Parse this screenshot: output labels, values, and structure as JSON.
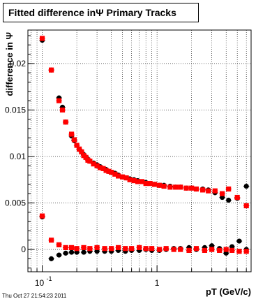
{
  "header": {
    "title": "Fitted difference inΨ   Primary Tracks"
  },
  "footer": {
    "timestamp": "Thu Oct 27 21:54:23 2011"
  },
  "chart_data": {
    "type": "scatter",
    "title": "Fitted difference inΨ   Primary Tracks",
    "xlabel": "pT (GeV/c)",
    "ylabel": "difference in Ψ",
    "xscale": "log",
    "xlim": [
      0.075,
      6.6
    ],
    "ylim": [
      -0.0024,
      0.0236
    ],
    "xticks": [
      {
        "v": 0.1,
        "base": "10",
        "exp": "-1"
      },
      {
        "v": 1,
        "label": "1"
      }
    ],
    "yticks": [
      {
        "v": 0,
        "label": "0"
      },
      {
        "v": 0.005,
        "label": "0.005"
      },
      {
        "v": 0.01,
        "label": "0.01"
      },
      {
        "v": 0.015,
        "label": "0.015"
      },
      {
        "v": 0.02,
        "label": "0.02"
      }
    ],
    "grid": true,
    "colors": {
      "series_a": "#000000",
      "series_b": "#ff0000"
    },
    "series": [
      {
        "color": "#000000",
        "points": [
          [
            0.1,
            0.0225
          ],
          [
            0.12,
            0.0193
          ],
          [
            0.14,
            0.0163
          ],
          [
            0.15,
            0.0153
          ],
          [
            0.16,
            0.0137
          ],
          [
            0.18,
            0.0122
          ],
          [
            0.19,
            0.0117
          ],
          [
            0.2,
            0.0112
          ],
          [
            0.21,
            0.0108
          ],
          [
            0.22,
            0.0105
          ],
          [
            0.23,
            0.0102
          ],
          [
            0.24,
            0.0099
          ],
          [
            0.25,
            0.0097
          ],
          [
            0.26,
            0.0095
          ],
          [
            0.28,
            0.0093
          ],
          [
            0.3,
            0.0091
          ],
          [
            0.32,
            0.0089
          ],
          [
            0.34,
            0.0087
          ],
          [
            0.36,
            0.0086
          ],
          [
            0.38,
            0.0084
          ],
          [
            0.4,
            0.0083
          ],
          [
            0.43,
            0.0082
          ],
          [
            0.46,
            0.008
          ],
          [
            0.5,
            0.0078
          ],
          [
            0.54,
            0.0077
          ],
          [
            0.58,
            0.0076
          ],
          [
            0.63,
            0.0075
          ],
          [
            0.68,
            0.0074
          ],
          [
            0.74,
            0.0073
          ],
          [
            0.8,
            0.0072
          ],
          [
            0.87,
            0.0071
          ],
          [
            0.95,
            0.007
          ],
          [
            1.05,
            0.0069
          ],
          [
            1.15,
            0.0069
          ],
          [
            1.3,
            0.0068
          ],
          [
            1.45,
            0.0067
          ],
          [
            1.6,
            0.0067
          ],
          [
            1.8,
            0.0066
          ],
          [
            2.0,
            0.0066
          ],
          [
            2.2,
            0.0065
          ],
          [
            2.5,
            0.0065
          ],
          [
            2.8,
            0.0064
          ],
          [
            3.2,
            0.0061
          ],
          [
            3.7,
            0.0056
          ],
          [
            4.2,
            0.0053
          ],
          [
            5.0,
            0.0055
          ],
          [
            6.0,
            0.0068
          ],
          [
            0.1,
            0.0035
          ],
          [
            0.12,
            -0.001
          ],
          [
            0.14,
            -0.0006
          ],
          [
            0.16,
            -0.0004
          ],
          [
            0.18,
            -0.0003
          ],
          [
            0.2,
            -0.0003
          ],
          [
            0.23,
            -0.0003
          ],
          [
            0.26,
            -0.0002
          ],
          [
            0.3,
            -0.0002
          ],
          [
            0.35,
            -0.0002
          ],
          [
            0.4,
            -0.0002
          ],
          [
            0.46,
            -0.0001
          ],
          [
            0.53,
            -0.0002
          ],
          [
            0.6,
            -0.0001
          ],
          [
            0.7,
            -0.0001
          ],
          [
            0.8,
            0.0
          ],
          [
            0.9,
            -0.0001
          ],
          [
            1.05,
            -0.0001
          ],
          [
            1.2,
            0.0
          ],
          [
            1.4,
            0.0001
          ],
          [
            1.6,
            0.0001
          ],
          [
            1.9,
            0.0002
          ],
          [
            2.2,
            0.0
          ],
          [
            2.6,
            0.0002
          ],
          [
            3.0,
            0.0004
          ],
          [
            3.5,
            0.0001
          ],
          [
            4.0,
            -0.0004
          ],
          [
            4.5,
            0.0003
          ],
          [
            5.2,
            0.0009
          ],
          [
            6.0,
            0.0
          ]
        ]
      },
      {
        "color": "#ff0000",
        "points": [
          [
            0.1,
            0.0227
          ],
          [
            0.12,
            0.0193
          ],
          [
            0.14,
            0.016
          ],
          [
            0.15,
            0.015
          ],
          [
            0.16,
            0.0137
          ],
          [
            0.18,
            0.0124
          ],
          [
            0.19,
            0.0118
          ],
          [
            0.2,
            0.0112
          ],
          [
            0.21,
            0.0108
          ],
          [
            0.22,
            0.0105
          ],
          [
            0.23,
            0.0101
          ],
          [
            0.24,
            0.0099
          ],
          [
            0.25,
            0.0096
          ],
          [
            0.26,
            0.0095
          ],
          [
            0.28,
            0.0092
          ],
          [
            0.3,
            0.009
          ],
          [
            0.32,
            0.0088
          ],
          [
            0.34,
            0.0087
          ],
          [
            0.36,
            0.0085
          ],
          [
            0.38,
            0.0084
          ],
          [
            0.4,
            0.0083
          ],
          [
            0.43,
            0.0081
          ],
          [
            0.46,
            0.0079
          ],
          [
            0.5,
            0.0078
          ],
          [
            0.54,
            0.0077
          ],
          [
            0.58,
            0.0075
          ],
          [
            0.63,
            0.0074
          ],
          [
            0.68,
            0.0073
          ],
          [
            0.74,
            0.0073
          ],
          [
            0.8,
            0.0071
          ],
          [
            0.87,
            0.0071
          ],
          [
            0.95,
            0.007
          ],
          [
            1.05,
            0.0069
          ],
          [
            1.15,
            0.0068
          ],
          [
            1.3,
            0.0067
          ],
          [
            1.45,
            0.0067
          ],
          [
            1.6,
            0.0067
          ],
          [
            1.8,
            0.0066
          ],
          [
            2.0,
            0.0066
          ],
          [
            2.2,
            0.0065
          ],
          [
            2.5,
            0.0064
          ],
          [
            2.8,
            0.0063
          ],
          [
            3.2,
            0.0063
          ],
          [
            3.7,
            0.006
          ],
          [
            4.2,
            0.0065
          ],
          [
            5.0,
            0.0056
          ],
          [
            6.0,
            0.0047
          ],
          [
            0.1,
            0.0036
          ],
          [
            0.12,
            0.001
          ],
          [
            0.14,
            0.0005
          ],
          [
            0.16,
            0.0002
          ],
          [
            0.18,
            0.0002
          ],
          [
            0.2,
            0.0001
          ],
          [
            0.23,
            0.0002
          ],
          [
            0.26,
            0.0001
          ],
          [
            0.3,
            0.0002
          ],
          [
            0.35,
            0.0001
          ],
          [
            0.4,
            0.0001
          ],
          [
            0.46,
            0.0002
          ],
          [
            0.53,
            0.0001
          ],
          [
            0.6,
            0.0001
          ],
          [
            0.7,
            0.0002
          ],
          [
            0.8,
            0.0001
          ],
          [
            0.9,
            0.0001
          ],
          [
            1.05,
            0.0
          ],
          [
            1.2,
            0.0001
          ],
          [
            1.4,
            0.0
          ],
          [
            1.6,
            0.0
          ],
          [
            1.9,
            -0.0001
          ],
          [
            2.2,
            0.0001
          ],
          [
            2.6,
            -0.0001
          ],
          [
            3.0,
            0.0
          ],
          [
            3.5,
            -0.0001
          ],
          [
            4.0,
            0.0
          ],
          [
            4.5,
            -0.0001
          ],
          [
            5.2,
            -0.0002
          ],
          [
            6.0,
            -0.0002
          ]
        ]
      }
    ]
  }
}
